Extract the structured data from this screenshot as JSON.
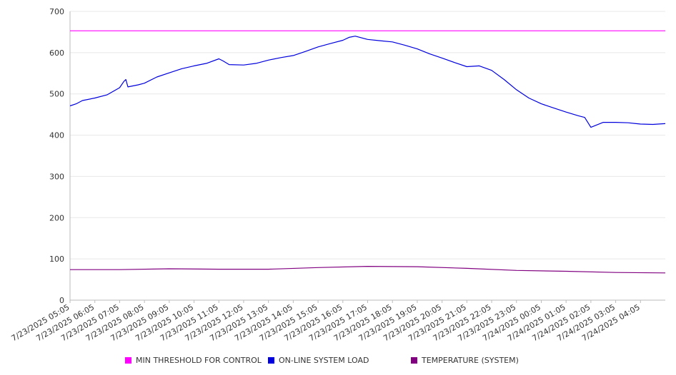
{
  "chart_data": {
    "type": "line",
    "ylim": [
      0,
      700
    ],
    "y_ticks": [
      0,
      100,
      200,
      300,
      400,
      500,
      600,
      700
    ],
    "grid": true,
    "legend_position": "bottom",
    "x_tick_labels": [
      "7/23/2025 05:05",
      "7/23/2025 06:05",
      "7/23/2025 07:05",
      "7/23/2025 08:05",
      "7/23/2025 09:05",
      "7/23/2025 10:05",
      "7/23/2025 11:05",
      "7/23/2025 12:05",
      "7/23/2025 13:05",
      "7/23/2025 14:05",
      "7/23/2025 15:05",
      "7/23/2025 16:05",
      "7/23/2025 17:05",
      "7/23/2025 18:05",
      "7/23/2025 19:05",
      "7/23/2025 20:05",
      "7/23/2025 21:05",
      "7/23/2025 22:05",
      "7/23/2025 23:05",
      "7/24/2025 00:05",
      "7/24/2025 01:05",
      "7/24/2025 02:05",
      "7/24/2025 03:05",
      "7/24/2025 04:05"
    ],
    "x_range": [
      "7/23/2025 05:05",
      "7/24/2025 05:05"
    ],
    "series": [
      {
        "name": "MIN THRESHOLD FOR CONTROL",
        "color": "#ff00ff",
        "x": [
          "7/23/2025 05:05",
          "7/24/2025 05:05"
        ],
        "values": [
          653,
          653
        ]
      },
      {
        "name": "ON-LINE SYSTEM LOAD",
        "color": "#0000dd",
        "x": [
          "7/23/2025 05:05",
          "7/23/2025 05:20",
          "7/23/2025 05:35",
          "7/23/2025 06:05",
          "7/23/2025 06:35",
          "7/23/2025 07:05",
          "7/23/2025 07:15",
          "7/23/2025 07:20",
          "7/23/2025 07:25",
          "7/23/2025 07:50",
          "7/23/2025 08:05",
          "7/23/2025 08:35",
          "7/23/2025 09:05",
          "7/23/2025 09:35",
          "7/23/2025 10:05",
          "7/23/2025 10:35",
          "7/23/2025 11:05",
          "7/23/2025 11:15",
          "7/23/2025 11:30",
          "7/23/2025 12:05",
          "7/23/2025 12:35",
          "7/23/2025 13:05",
          "7/23/2025 13:35",
          "7/23/2025 14:05",
          "7/23/2025 14:35",
          "7/23/2025 15:05",
          "7/23/2025 15:35",
          "7/23/2025 16:05",
          "7/23/2025 16:20",
          "7/23/2025 16:35",
          "7/23/2025 17:05",
          "7/23/2025 17:35",
          "7/23/2025 18:05",
          "7/23/2025 18:35",
          "7/23/2025 19:05",
          "7/23/2025 19:35",
          "7/23/2025 20:05",
          "7/23/2025 20:35",
          "7/23/2025 21:05",
          "7/23/2025 21:35",
          "7/23/2025 22:05",
          "7/23/2025 22:35",
          "7/23/2025 23:05",
          "7/23/2025 23:35",
          "7/24/2025 00:05",
          "7/24/2025 00:35",
          "7/24/2025 01:05",
          "7/24/2025 01:35",
          "7/24/2025 01:50",
          "7/24/2025 02:05",
          "7/24/2025 02:35",
          "7/24/2025 03:05",
          "7/24/2025 03:35",
          "7/24/2025 04:05",
          "7/24/2025 04:35",
          "7/24/2025 05:05"
        ],
        "values": [
          471,
          476,
          484,
          490,
          498,
          515,
          530,
          535,
          517,
          522,
          526,
          541,
          551,
          561,
          568,
          574,
          585,
          580,
          571,
          570,
          574,
          582,
          588,
          593,
          603,
          614,
          622,
          630,
          637,
          640,
          632,
          629,
          626,
          618,
          609,
          597,
          587,
          576,
          566,
          568,
          557,
          535,
          510,
          490,
          476,
          466,
          456,
          447,
          443,
          419,
          431,
          431,
          430,
          427,
          426,
          428
        ]
      },
      {
        "name": "TEMPERATURE (SYSTEM)",
        "color": "#800080",
        "x": [
          "7/23/2025 05:05",
          "7/23/2025 07:05",
          "7/23/2025 09:05",
          "7/23/2025 11:05",
          "7/23/2025 13:05",
          "7/23/2025 15:05",
          "7/23/2025 17:05",
          "7/23/2025 19:05",
          "7/23/2025 21:05",
          "7/23/2025 23:05",
          "7/24/2025 01:05",
          "7/24/2025 03:05",
          "7/24/2025 05:05"
        ],
        "values": [
          74,
          74,
          76,
          75,
          75,
          79,
          82,
          81,
          77,
          72,
          70,
          67,
          66
        ]
      }
    ]
  },
  "axis_color": "#bbbbbb",
  "grid_color": "#e8e8e8"
}
